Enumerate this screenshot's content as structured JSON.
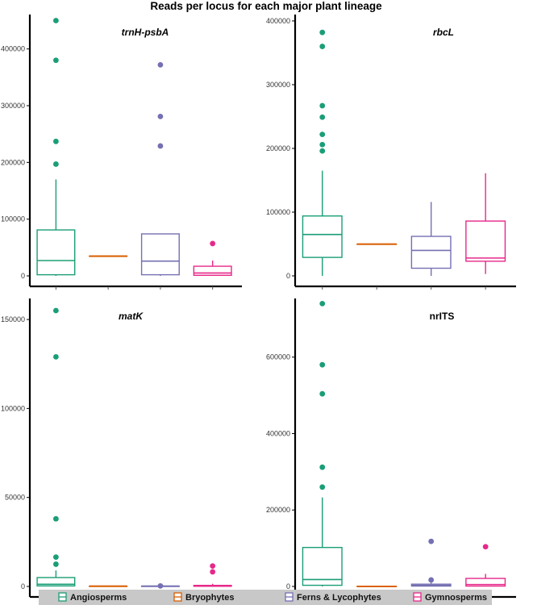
{
  "title": "Reads per locus for each major plant lineage",
  "colors": {
    "Angiosperms": "#1b9e77",
    "Bryophytes": "#d95f02",
    "Ferns & Lycophytes": "#7570b3",
    "Gymnosperms": "#e7298a",
    "axis": "#000000",
    "legend_bg": "#c8c8c8"
  },
  "legend": {
    "position": "bottom",
    "items": [
      "Angiosperms",
      "Bryophytes",
      "Ferns & Lycophytes",
      "Gymnosperms"
    ]
  },
  "chart_data": [
    {
      "type": "box",
      "title": "trnH-psbA",
      "italic_title": true,
      "categories": [
        "Angiosperms",
        "Bryophytes",
        "Ferns & Lycophytes",
        "Gymnosperms"
      ],
      "ylim": [
        0,
        455000
      ],
      "yticks": [
        0,
        100000,
        200000,
        300000,
        400000
      ],
      "boxes": [
        {
          "group": "Angiosperms",
          "q1": 2000,
          "median": 27000,
          "q3": 81000,
          "whisker_low": 0,
          "whisker_high": 170000,
          "outliers": [
            197000,
            237000,
            380000,
            450000
          ]
        },
        {
          "group": "Bryophytes",
          "q1": 35000,
          "median": 35000,
          "q3": 35000,
          "whisker_low": 35000,
          "whisker_high": 35000,
          "outliers": []
        },
        {
          "group": "Ferns & Lycophytes",
          "q1": 2000,
          "median": 26000,
          "q3": 74000,
          "whisker_low": 0,
          "whisker_high": 74000,
          "outliers": [
            229000,
            281000,
            372000
          ]
        },
        {
          "group": "Gymnosperms",
          "q1": 1000,
          "median": 5000,
          "q3": 17000,
          "whisker_low": 0,
          "whisker_high": 27000,
          "outliers": [
            57000
          ]
        }
      ]
    },
    {
      "type": "box",
      "title": "rbcL",
      "italic_title": true,
      "categories": [
        "Angiosperms",
        "Bryophytes",
        "Ferns & Lycophytes",
        "Gymnosperms"
      ],
      "ylim": [
        0,
        405000
      ],
      "yticks": [
        0,
        100000,
        200000,
        300000,
        400000
      ],
      "boxes": [
        {
          "group": "Angiosperms",
          "q1": 29000,
          "median": 65000,
          "q3": 94000,
          "whisker_low": 0,
          "whisker_high": 165000,
          "outliers": [
            196000,
            206000,
            222000,
            249000,
            267000,
            360000,
            382000
          ]
        },
        {
          "group": "Bryophytes",
          "q1": 50000,
          "median": 50000,
          "q3": 50000,
          "whisker_low": 50000,
          "whisker_high": 50000,
          "outliers": []
        },
        {
          "group": "Ferns & Lycophytes",
          "q1": 12000,
          "median": 40000,
          "q3": 62000,
          "whisker_low": 0,
          "whisker_high": 116000,
          "outliers": []
        },
        {
          "group": "Gymnosperms",
          "q1": 23000,
          "median": 28000,
          "q3": 86000,
          "whisker_low": 3000,
          "whisker_high": 161000,
          "outliers": []
        }
      ]
    },
    {
      "type": "box",
      "title": "matK",
      "italic_title": true,
      "categories": [
        "Angiosperms",
        "Bryophytes",
        "Ferns & Lycophytes",
        "Gymnosperms"
      ],
      "ylim": [
        0,
        160000
      ],
      "yticks": [
        0,
        50000,
        100000,
        150000
      ],
      "boxes": [
        {
          "group": "Angiosperms",
          "q1": 300,
          "median": 1200,
          "q3": 5000,
          "whisker_low": 0,
          "whisker_high": 9000,
          "outliers": [
            12500,
            16500,
            38000,
            129000,
            155000
          ]
        },
        {
          "group": "Bryophytes",
          "q1": 200,
          "median": 200,
          "q3": 200,
          "whisker_low": 200,
          "whisker_high": 200,
          "outliers": []
        },
        {
          "group": "Ferns & Lycophytes",
          "q1": 200,
          "median": 200,
          "q3": 200,
          "whisker_low": 200,
          "whisker_high": 200,
          "outliers": [
            300
          ]
        },
        {
          "group": "Gymnosperms",
          "q1": 100,
          "median": 300,
          "q3": 600,
          "whisker_low": 0,
          "whisker_high": 1500,
          "outliers": [
            8200,
            11500
          ]
        }
      ]
    },
    {
      "type": "box",
      "title": "nrITS",
      "italic_title": false,
      "categories": [
        "Angiosperms",
        "Bryophytes",
        "Ferns & Lycophytes",
        "Gymnosperms"
      ],
      "ylim": [
        0,
        745000
      ],
      "yticks": [
        0,
        200000,
        400000,
        600000
      ],
      "boxes": [
        {
          "group": "Angiosperms",
          "q1": 3000,
          "median": 18000,
          "q3": 102000,
          "whisker_low": 0,
          "whisker_high": 233000,
          "outliers": [
            260000,
            312000,
            504000,
            580000,
            740000
          ]
        },
        {
          "group": "Bryophytes",
          "q1": 500,
          "median": 500,
          "q3": 500,
          "whisker_low": 500,
          "whisker_high": 500,
          "outliers": []
        },
        {
          "group": "Ferns & Lycophytes",
          "q1": 1000,
          "median": 3000,
          "q3": 6000,
          "whisker_low": 0,
          "whisker_high": 10000,
          "outliers": [
            17000,
            118000
          ]
        },
        {
          "group": "Gymnosperms",
          "q1": 1000,
          "median": 5000,
          "q3": 21000,
          "whisker_low": 0,
          "whisker_high": 33000,
          "outliers": [
            104000
          ]
        }
      ]
    }
  ]
}
